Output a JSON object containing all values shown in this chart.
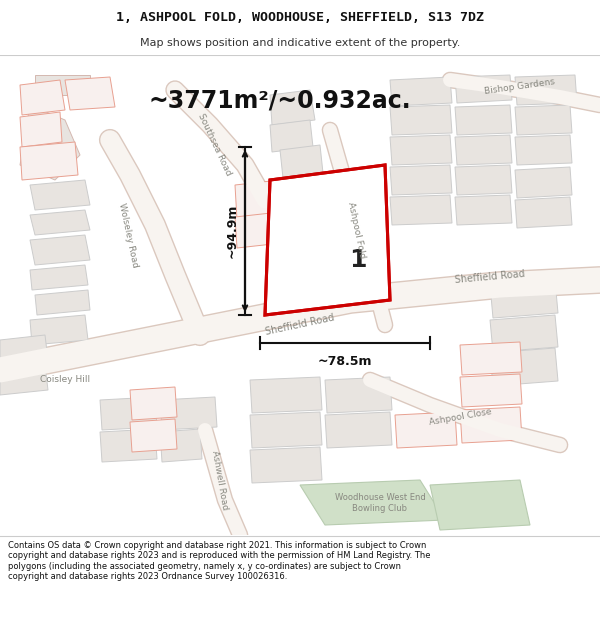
{
  "title_line1": "1, ASHPOOL FOLD, WOODHOUSE, SHEFFIELD, S13 7DZ",
  "title_line2": "Map shows position and indicative extent of the property.",
  "area_text": "~3771m²/~0.932ac.",
  "dim_width": "~78.5m",
  "dim_height": "~94.9m",
  "plot_label": "1",
  "footer_text": "Contains OS data © Crown copyright and database right 2021. This information is subject to Crown copyright and database rights 2023 and is reproduced with the permission of HM Land Registry. The polygons (including the associated geometry, namely x, y co-ordinates) are subject to Crown copyright and database rights 2023 Ordnance Survey 100026316.",
  "map_bg": "#f5f0ef",
  "road_fill": "#ffffff",
  "road_stroke": "#e8d0c8",
  "building_fill": "#e8e4e0",
  "building_stroke": "#d0c8c0",
  "plot_stroke": "#cc0000",
  "plot_fill": "#ffffff",
  "green_area": "#d8e8d0",
  "dim_color": "#111111",
  "text_color": "#555555",
  "header_color": "#111111"
}
